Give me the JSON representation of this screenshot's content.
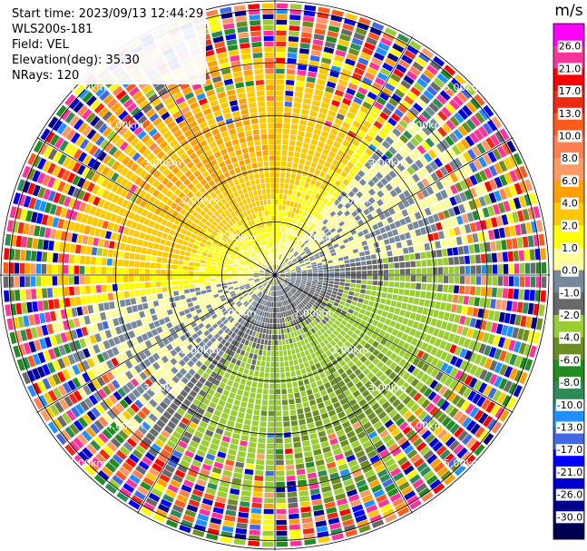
{
  "header": {
    "start_time": "Start time: 2023/09/13 12:44:29",
    "instrument": "WLS200s-181",
    "field": "Field: VEL",
    "elevation": "Elevation(deg): 35.30",
    "nrays": "NRays: 120"
  },
  "chart_data": {
    "type": "ppi-polar-scan",
    "nrays": 120,
    "range_labels": [
      "1.00km",
      "2.00km",
      "3.00km",
      "4.00km",
      "5.00km"
    ],
    "range_rings_km": [
      1,
      2,
      3,
      4,
      5
    ],
    "spoke_angles_deg": [
      0,
      30,
      60,
      90,
      120,
      150,
      180,
      210,
      240,
      270,
      300,
      330
    ],
    "colorbar": {
      "unit": "m/s",
      "ticks": [
        "26.0",
        "21.0",
        "17.0",
        "13.0",
        "10.0",
        "8.0",
        "6.0",
        "4.0",
        "2.0",
        "1.0",
        "0.0",
        "-1.0",
        "-2.0",
        "-4.0",
        "-6.0",
        "-8.0",
        "-10.0",
        "-13.0",
        "-17.0",
        "-21.0",
        "-26.0",
        "-30.0"
      ],
      "levels": [
        30,
        26,
        21,
        17,
        13,
        10,
        8,
        6,
        4,
        2,
        1,
        0,
        -1,
        -2,
        -4,
        -6,
        -8,
        -10,
        -13,
        -17,
        -21,
        -26,
        -30
      ],
      "colors": [
        "#ff00ff",
        "#ff3399",
        "#ff0000",
        "#ee2a14",
        "#ff5a1e",
        "#ff7f50",
        "#ff9966",
        "#ff9f00",
        "#ffc800",
        "#ffff00",
        "#ffff99",
        "#778899",
        "#696969",
        "#9acd32",
        "#6b8e23",
        "#228b22",
        "#2e8b57",
        "#1e90ff",
        "#4169e1",
        "#0000ff",
        "#0000cd",
        "#00008b",
        "#000050"
      ]
    }
  }
}
